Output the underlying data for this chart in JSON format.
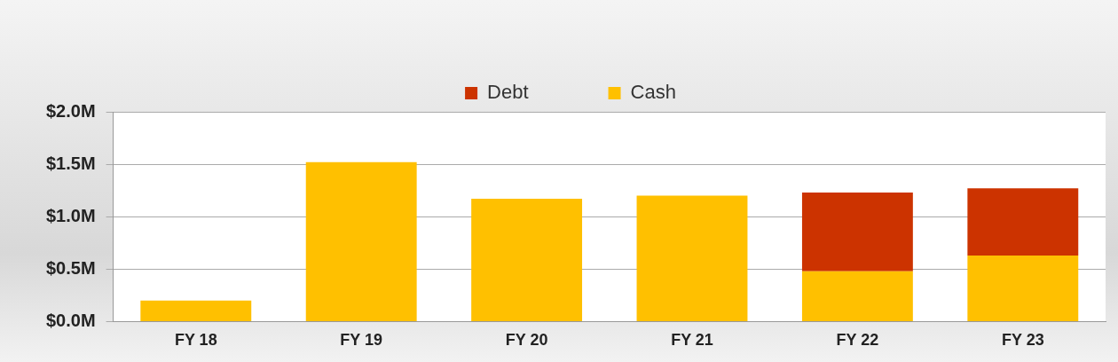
{
  "chart_data": {
    "type": "bar",
    "stacked": true,
    "categories": [
      "FY 18",
      "FY 19",
      "FY 20",
      "FY 21",
      "FY 22",
      "FY 23"
    ],
    "series": [
      {
        "name": "Cash",
        "color": "#ffc000",
        "values": [
          0.2,
          1.52,
          1.17,
          1.2,
          0.48,
          0.63
        ]
      },
      {
        "name": "Debt",
        "color": "#cc3300",
        "values": [
          0,
          0,
          0,
          0,
          0.75,
          0.64
        ]
      }
    ],
    "ylim": [
      0,
      2
    ],
    "yticks": [
      {
        "value": 0,
        "label": "$0.0M"
      },
      {
        "value": 0.5,
        "label": "$0.5M"
      },
      {
        "value": 1,
        "label": "$1.0M"
      },
      {
        "value": 1.5,
        "label": "$1.5M"
      },
      {
        "value": 2,
        "label": "$2.0M"
      }
    ],
    "grid": "y",
    "legend": "top"
  }
}
